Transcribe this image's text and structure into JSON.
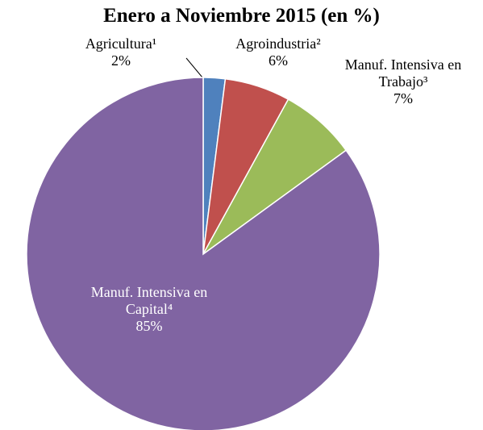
{
  "chart_data": {
    "type": "pie",
    "title": "Enero a Noviembre 2015 (en %)",
    "categories": [
      "Agricultura¹",
      "Agroindustria²",
      "Manuf. Intensiva en Trabajo³",
      "Manuf. Intensiva en Capital⁴"
    ],
    "values": [
      2,
      6,
      7,
      85
    ],
    "value_labels": [
      "2%",
      "6%",
      "7%",
      "85%"
    ],
    "colors": [
      "#4f81bd",
      "#c0504d",
      "#9bbb59",
      "#8064a2"
    ]
  }
}
